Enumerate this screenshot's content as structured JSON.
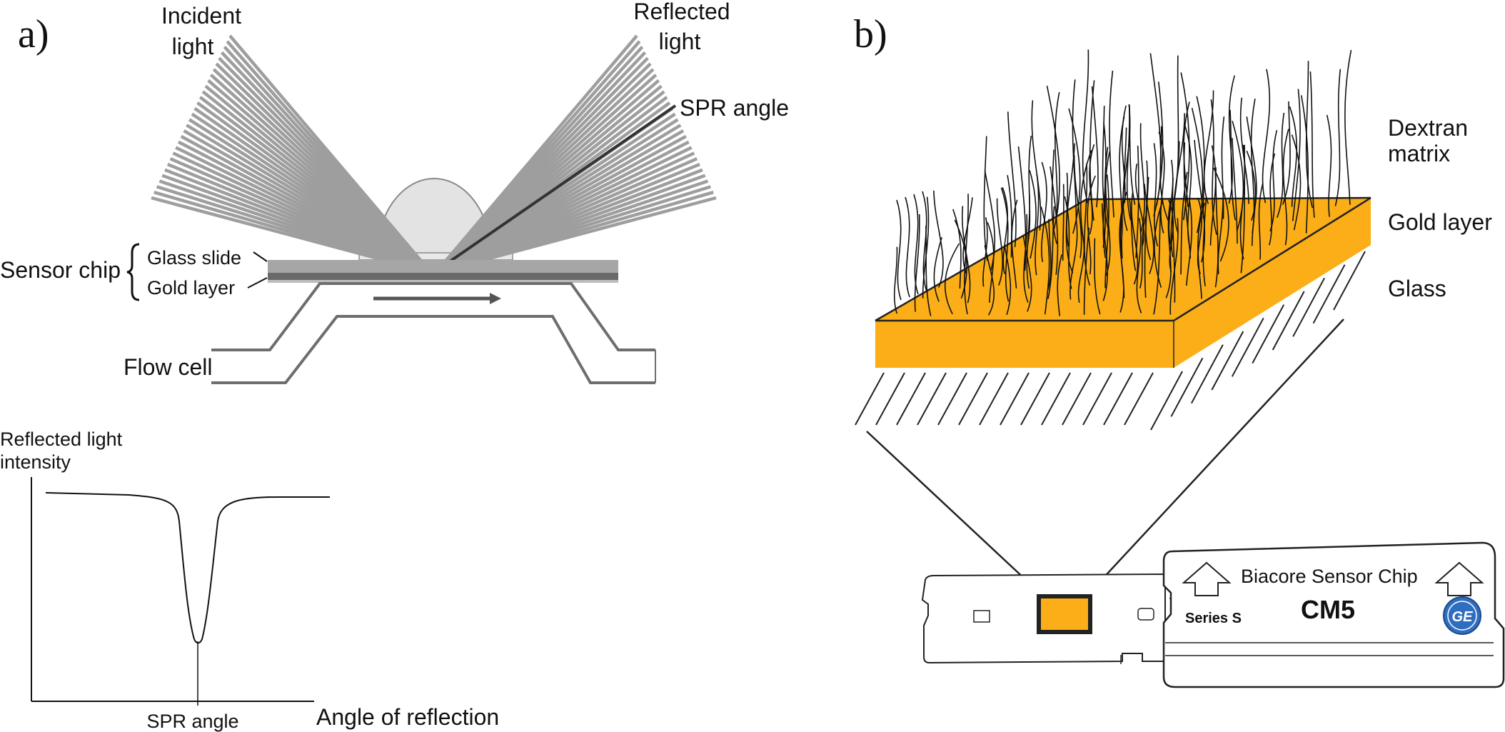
{
  "panel_a": {
    "letter": "a)",
    "incident_light": [
      "Incident",
      "light"
    ],
    "reflected_light": [
      "Reflected",
      "light"
    ],
    "spr_angle_top": "SPR angle",
    "sensor_chip": "Sensor chip",
    "glass_slide": "Glass slide",
    "gold_layer": "Gold layer",
    "flow_cell": "Flow cell",
    "graph": {
      "y_label": [
        "Reflected light",
        "intensity"
      ],
      "x_label": "Angle of reflection",
      "dip_label": "SPR angle"
    }
  },
  "panel_b": {
    "letter": "b)",
    "dextran_matrix": [
      "Dextran",
      "matrix"
    ],
    "gold_layer": "Gold layer",
    "glass": "Glass",
    "chip": {
      "brand": "Biacore Sensor Chip",
      "series": "Series S",
      "model": "CM5",
      "logo_text": "GE"
    }
  },
  "colors": {
    "gold": "#FBAE17",
    "gray_rays": "#9e9e9e",
    "dark_ray": "#333333",
    "prism": "#e3e3e3"
  }
}
